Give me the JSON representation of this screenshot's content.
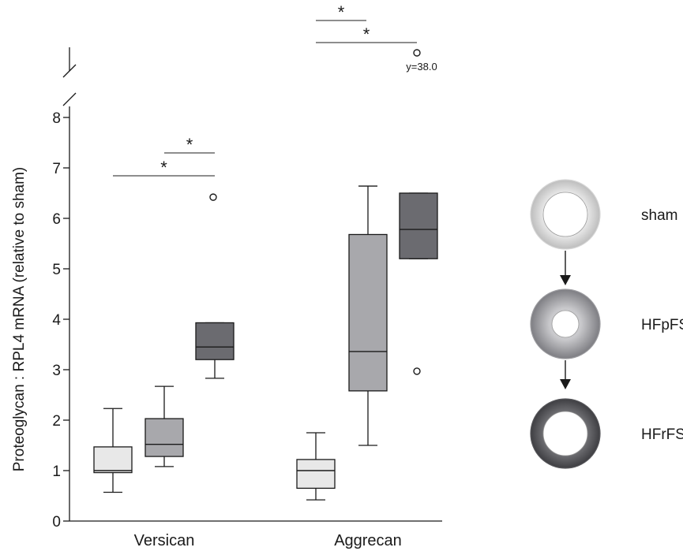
{
  "chart_data": {
    "type": "box",
    "ylabel": "Proteoglycan : RPL4 mRNA (relative to sham)",
    "ylim": [
      0,
      8
    ],
    "yticks": [
      0,
      1,
      2,
      3,
      4,
      5,
      6,
      7,
      8
    ],
    "axis_break": true,
    "categories": [
      "Versican",
      "Aggrecan"
    ],
    "series": [
      {
        "name": "sham",
        "color": "#e8e8e8"
      },
      {
        "name": "HFpFS",
        "color": "#a8a8ac"
      },
      {
        "name": "HFrFS",
        "color": "#6b6b70"
      }
    ],
    "boxes": [
      {
        "category": "Versican",
        "series": "sham",
        "min": 0.57,
        "q1": 0.96,
        "median": 1.0,
        "q3": 1.47,
        "max": 2.23,
        "outliers": []
      },
      {
        "category": "Versican",
        "series": "HFpFS",
        "min": 1.08,
        "q1": 1.28,
        "median": 1.52,
        "q3": 2.03,
        "max": 2.67,
        "outliers": []
      },
      {
        "category": "Versican",
        "series": "HFrFS",
        "min": 2.83,
        "q1": 3.2,
        "median": 3.45,
        "q3": 3.93,
        "max": 3.93,
        "outliers": [
          6.42
        ]
      },
      {
        "category": "Aggrecan",
        "series": "sham",
        "min": 0.42,
        "q1": 0.65,
        "median": 1.0,
        "q3": 1.22,
        "max": 1.75,
        "outliers": []
      },
      {
        "category": "Aggrecan",
        "series": "HFpFS",
        "min": 1.5,
        "q1": 2.58,
        "median": 3.36,
        "q3": 5.68,
        "max": 6.64,
        "outliers": []
      },
      {
        "category": "Aggrecan",
        "series": "HFrFS",
        "min": 5.2,
        "q1": 5.2,
        "median": 5.78,
        "q3": 6.5,
        "max": 6.5,
        "outliers": [
          2.97,
          38.0
        ]
      }
    ],
    "outlier_note": "y=38.0",
    "significance": [
      {
        "category": "Versican",
        "from": "HFpFS",
        "to": "HFrFS",
        "label": "*"
      },
      {
        "category": "Versican",
        "from": "sham",
        "to": "HFrFS",
        "label": "*"
      },
      {
        "category": "Aggrecan",
        "from": "sham",
        "to": "HFpFS",
        "label": "*"
      },
      {
        "category": "Aggrecan",
        "from": "sham",
        "to": "HFrFS",
        "label": "*"
      }
    ],
    "legend": {
      "position": "right",
      "items": [
        {
          "label": "sham",
          "ring_color": "#d6d6d6"
        },
        {
          "label": "HFpFS",
          "ring_color": "#9c9ca0"
        },
        {
          "label": "HFrFS",
          "ring_color": "#58585c"
        }
      ]
    },
    "grid": false
  }
}
